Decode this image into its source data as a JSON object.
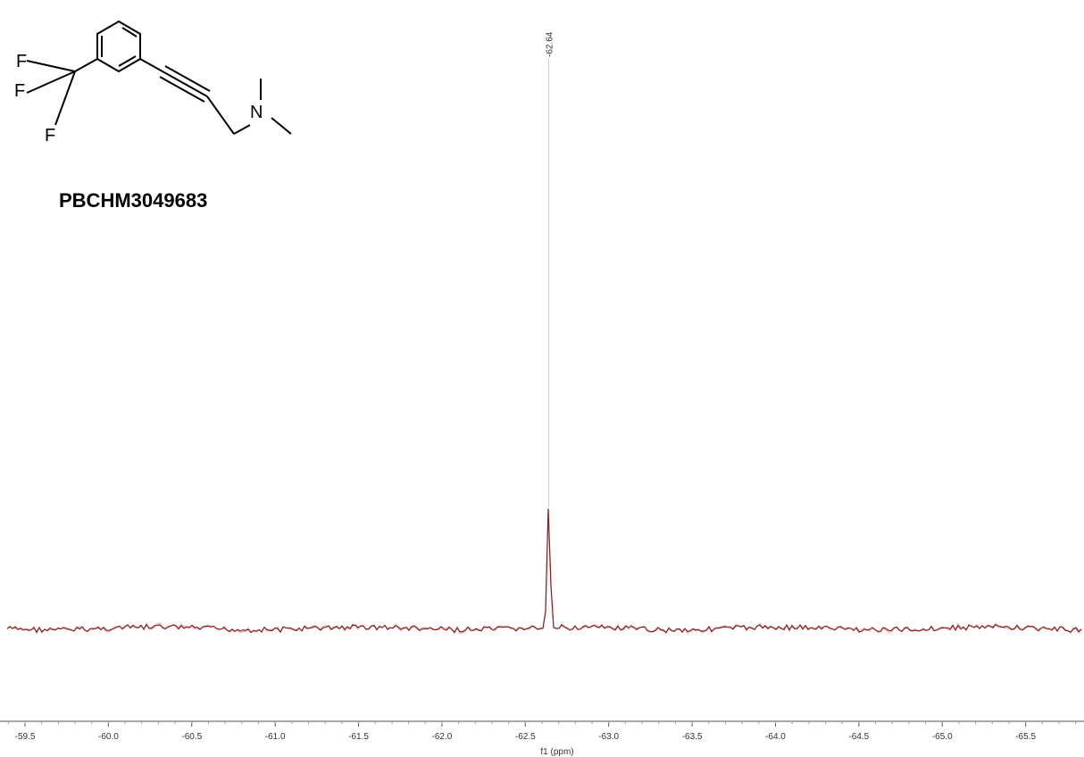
{
  "structure": {
    "compound_id": "PBCHM3049683",
    "atoms": [
      "F",
      "F",
      "F",
      "N"
    ]
  },
  "chart_data": {
    "type": "line",
    "title": "",
    "xlabel": "f1 (ppm)",
    "ylabel": "",
    "x_reversed": true,
    "xlim": [
      -59.35,
      -65.85
    ],
    "ticks": [
      -59.5,
      -60.0,
      -60.5,
      -61.0,
      -61.5,
      -62.0,
      -62.5,
      -63.0,
      -63.5,
      -64.0,
      -64.5,
      -65.0,
      -65.5
    ],
    "tick_labels": [
      "-59.5",
      "-60.0",
      "-60.5",
      "-61.0",
      "-61.5",
      "-62.0",
      "-62.5",
      "-63.0",
      "-63.5",
      "-64.0",
      "-64.5",
      "-65.0",
      "-65.5"
    ],
    "peaks": [
      {
        "label": "-62.64",
        "ppm": -62.64
      }
    ],
    "series": [
      {
        "color": "#8b1a1a",
        "baseline": 0.0,
        "peak_ppm": -62.64,
        "peak_height": 1.0
      }
    ],
    "grid": false
  }
}
